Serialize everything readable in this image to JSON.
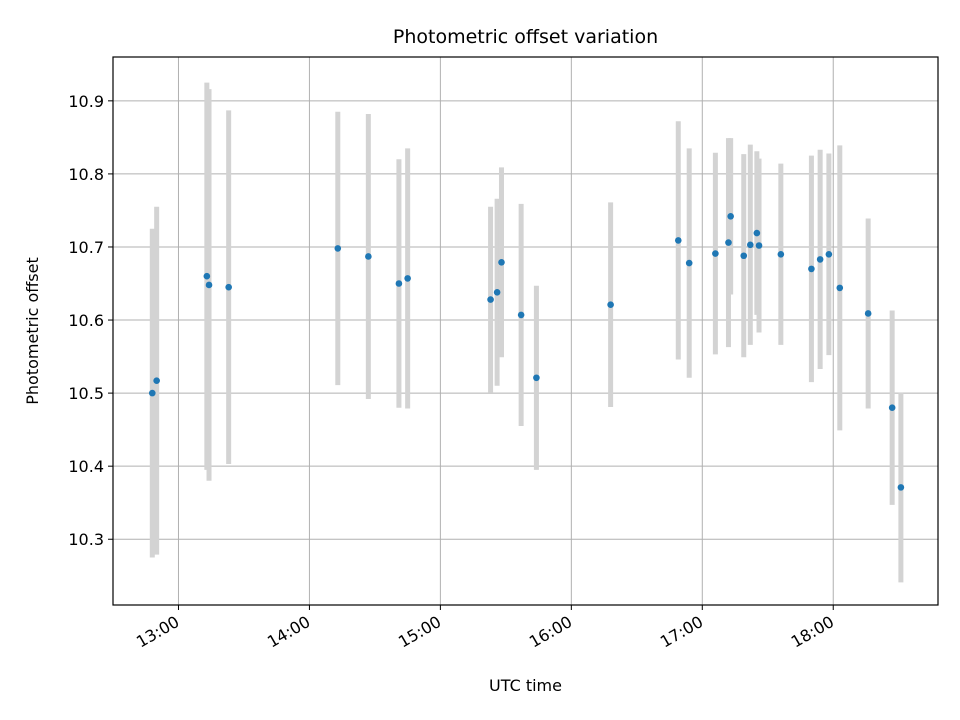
{
  "chart_data": {
    "type": "scatter",
    "title": "Photometric offset variation",
    "xlabel": "UTC time",
    "ylabel": "Photometric offset",
    "x_ticks": [
      "13:00",
      "14:00",
      "15:00",
      "16:00",
      "17:00",
      "18:00"
    ],
    "y_ticks": [
      10.3,
      10.4,
      10.5,
      10.6,
      10.7,
      10.8,
      10.9
    ],
    "xlim": [
      "12:30",
      "18:48"
    ],
    "ylim": [
      10.21,
      10.96
    ],
    "grid": true,
    "marker_color": "#1f77b4",
    "errorbar_color": "#d3d3d3",
    "points": [
      {
        "x": "12:48",
        "y": 10.5,
        "err": 0.225
      },
      {
        "x": "12:50",
        "y": 10.517,
        "err": 0.238
      },
      {
        "x": "13:13",
        "y": 10.66,
        "err": 0.265
      },
      {
        "x": "13:14",
        "y": 10.648,
        "err": 0.268
      },
      {
        "x": "13:23",
        "y": 10.645,
        "err": 0.242
      },
      {
        "x": "14:13",
        "y": 10.698,
        "err": 0.187
      },
      {
        "x": "14:27",
        "y": 10.687,
        "err": 0.195
      },
      {
        "x": "14:41",
        "y": 10.65,
        "err": 0.17
      },
      {
        "x": "14:45",
        "y": 10.657,
        "err": 0.178
      },
      {
        "x": "15:23",
        "y": 10.628,
        "err": 0.127
      },
      {
        "x": "15:26",
        "y": 10.638,
        "err": 0.128
      },
      {
        "x": "15:28",
        "y": 10.679,
        "err": 0.13
      },
      {
        "x": "15:37",
        "y": 10.607,
        "err": 0.152
      },
      {
        "x": "15:44",
        "y": 10.521,
        "err": 0.126
      },
      {
        "x": "16:18",
        "y": 10.621,
        "err": 0.14
      },
      {
        "x": "16:49",
        "y": 10.709,
        "err": 0.163
      },
      {
        "x": "16:54",
        "y": 10.678,
        "err": 0.157
      },
      {
        "x": "17:06",
        "y": 10.691,
        "err": 0.138
      },
      {
        "x": "17:12",
        "y": 10.706,
        "err": 0.143
      },
      {
        "x": "17:13",
        "y": 10.742,
        "err": 0.107
      },
      {
        "x": "17:19",
        "y": 10.688,
        "err": 0.139
      },
      {
        "x": "17:22",
        "y": 10.703,
        "err": 0.137
      },
      {
        "x": "17:25",
        "y": 10.719,
        "err": 0.112
      },
      {
        "x": "17:26",
        "y": 10.702,
        "err": 0.119
      },
      {
        "x": "17:36",
        "y": 10.69,
        "err": 0.124
      },
      {
        "x": "17:50",
        "y": 10.67,
        "err": 0.155
      },
      {
        "x": "17:54",
        "y": 10.683,
        "err": 0.15
      },
      {
        "x": "17:58",
        "y": 10.69,
        "err": 0.138
      },
      {
        "x": "18:03",
        "y": 10.644,
        "err": 0.195
      },
      {
        "x": "18:16",
        "y": 10.609,
        "err": 0.13
      },
      {
        "x": "18:27",
        "y": 10.48,
        "err": 0.133
      },
      {
        "x": "18:31",
        "y": 10.371,
        "err": 0.13
      }
    ]
  }
}
